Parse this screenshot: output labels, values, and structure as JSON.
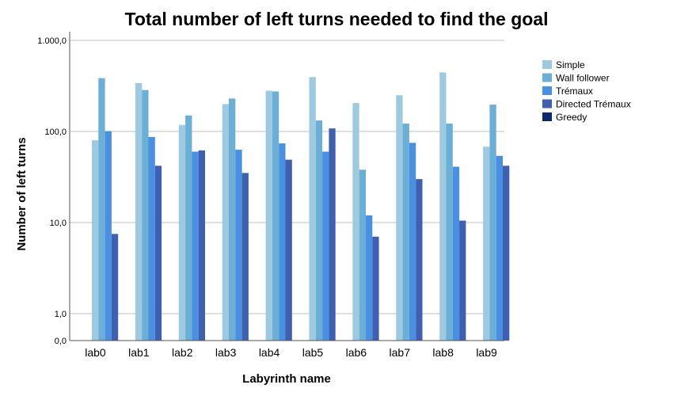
{
  "chart_data": {
    "type": "bar",
    "title": "Total number of left turns needed to find the goal",
    "xlabel": "Labyrinth name",
    "ylabel": "Number of left turns",
    "y_scale": "log",
    "y_ticks": [
      {
        "value": 0,
        "label": "0,0"
      },
      {
        "value": 1,
        "label": "1,0"
      },
      {
        "value": 10,
        "label": "10,0"
      },
      {
        "value": 100,
        "label": "100,0"
      },
      {
        "value": 1000,
        "label": "1.000,0"
      }
    ],
    "grid": true,
    "legend_position": "right",
    "categories": [
      "lab0",
      "lab1",
      "lab2",
      "lab3",
      "lab4",
      "lab5",
      "lab6",
      "lab7",
      "lab8",
      "lab9"
    ],
    "series": [
      {
        "name": "Simple",
        "color": "#9ecae1",
        "values": [
          80,
          340,
          118,
          200,
          280,
          395,
          205,
          250,
          445,
          68
        ]
      },
      {
        "name": "Wall follower",
        "color": "#6baed6",
        "values": [
          385,
          285,
          150,
          230,
          275,
          132,
          38,
          122,
          122,
          197
        ]
      },
      {
        "name": "Trémaux",
        "color": "#4a90e2",
        "values": [
          101,
          87,
          60,
          63,
          74,
          60,
          12,
          75,
          41,
          54
        ]
      },
      {
        "name": "Directed Trémaux",
        "color": "#3f5fb0",
        "values": [
          7.5,
          42,
          62,
          35,
          49,
          108,
          7,
          30,
          10.5,
          42
        ]
      },
      {
        "name": "Greedy",
        "color": "#0b2a6f",
        "values": [
          null,
          null,
          null,
          null,
          null,
          null,
          null,
          null,
          null,
          null
        ]
      }
    ]
  }
}
